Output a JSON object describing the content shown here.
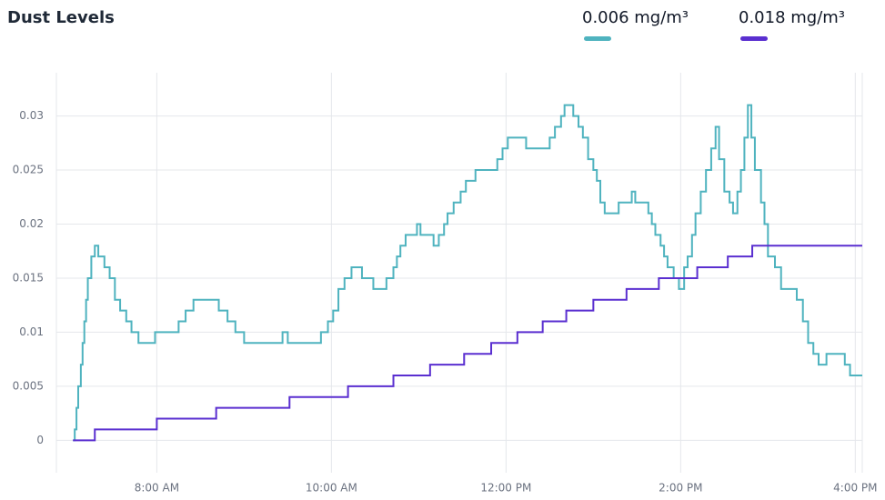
{
  "chart_data": {
    "type": "line",
    "step": "after",
    "title": "Dust Levels",
    "legend": "top-right",
    "grid": true,
    "xlim": [
      6.85,
      16.08
    ],
    "xticks": [
      {
        "value": 8,
        "label": "8:00 AM"
      },
      {
        "value": 10,
        "label": "10:00 AM"
      },
      {
        "value": 12,
        "label": "12:00 PM"
      },
      {
        "value": 14,
        "label": "2:00 PM"
      },
      {
        "value": 16,
        "label": "4:00 PM"
      }
    ],
    "ylim": [
      -0.003,
      0.034
    ],
    "yticks": [
      0,
      0.005,
      0.01,
      0.015,
      0.02,
      0.025,
      0.03
    ],
    "series": [
      {
        "name": "0.006 mg/m³",
        "color": "#4fb3bf",
        "x": [
          7.04,
          7.06,
          7.08,
          7.1,
          7.13,
          7.15,
          7.17,
          7.19,
          7.21,
          7.25,
          7.29,
          7.33,
          7.4,
          7.46,
          7.52,
          7.58,
          7.65,
          7.71,
          7.79,
          7.98,
          8.25,
          8.33,
          8.42,
          8.67,
          8.71,
          8.81,
          8.9,
          9.0,
          9.44,
          9.5,
          9.81,
          9.88,
          9.96,
          10.02,
          10.08,
          10.15,
          10.23,
          10.35,
          10.48,
          10.63,
          10.71,
          10.75,
          10.79,
          10.85,
          10.98,
          11.02,
          11.17,
          11.23,
          11.29,
          11.33,
          11.4,
          11.48,
          11.54,
          11.65,
          11.9,
          11.96,
          12.02,
          12.23,
          12.5,
          12.56,
          12.63,
          12.67,
          12.77,
          12.83,
          12.88,
          12.94,
          13.0,
          13.04,
          13.08,
          13.13,
          13.29,
          13.44,
          13.48,
          13.63,
          13.67,
          13.71,
          13.77,
          13.81,
          13.85,
          13.92,
          13.98,
          14.04,
          14.08,
          14.13,
          14.17,
          14.23,
          14.29,
          14.35,
          14.4,
          14.44,
          14.5,
          14.56,
          14.6,
          14.65,
          14.69,
          14.73,
          14.77,
          14.81,
          14.85,
          14.92,
          14.96,
          15.0,
          15.08,
          15.15,
          15.33,
          15.4,
          15.46,
          15.52,
          15.58,
          15.67,
          15.88,
          15.94,
          16.08
        ],
        "values": [
          0,
          0.001,
          0.003,
          0.005,
          0.007,
          0.009,
          0.011,
          0.013,
          0.015,
          0.017,
          0.018,
          0.017,
          0.016,
          0.015,
          0.013,
          0.012,
          0.011,
          0.01,
          0.009,
          0.01,
          0.011,
          0.012,
          0.013,
          0.013,
          0.012,
          0.011,
          0.01,
          0.009,
          0.01,
          0.009,
          0.009,
          0.01,
          0.011,
          0.012,
          0.014,
          0.015,
          0.016,
          0.015,
          0.014,
          0.015,
          0.016,
          0.017,
          0.018,
          0.019,
          0.02,
          0.019,
          0.018,
          0.019,
          0.02,
          0.021,
          0.022,
          0.023,
          0.024,
          0.025,
          0.026,
          0.027,
          0.028,
          0.027,
          0.028,
          0.029,
          0.03,
          0.031,
          0.03,
          0.029,
          0.028,
          0.026,
          0.025,
          0.024,
          0.022,
          0.021,
          0.022,
          0.023,
          0.022,
          0.021,
          0.02,
          0.019,
          0.018,
          0.017,
          0.016,
          0.015,
          0.014,
          0.016,
          0.017,
          0.019,
          0.021,
          0.023,
          0.025,
          0.027,
          0.029,
          0.026,
          0.023,
          0.022,
          0.021,
          0.023,
          0.025,
          0.028,
          0.031,
          0.028,
          0.025,
          0.022,
          0.02,
          0.017,
          0.016,
          0.014,
          0.013,
          0.011,
          0.009,
          0.008,
          0.007,
          0.008,
          0.007,
          0.006,
          0.006
        ]
      },
      {
        "name": "0.018 mg/m³",
        "color": "#5a2fd0",
        "x": [
          7.04,
          7.29,
          8.0,
          8.68,
          9.52,
          10.19,
          10.71,
          11.13,
          11.52,
          11.83,
          12.13,
          12.42,
          12.69,
          13.0,
          13.38,
          13.75,
          14.19,
          14.54,
          14.82,
          16.08
        ],
        "values": [
          0,
          0.001,
          0.002,
          0.003,
          0.004,
          0.005,
          0.006,
          0.007,
          0.008,
          0.009,
          0.01,
          0.011,
          0.012,
          0.013,
          0.014,
          0.015,
          0.016,
          0.017,
          0.018,
          0.018
        ]
      }
    ]
  }
}
